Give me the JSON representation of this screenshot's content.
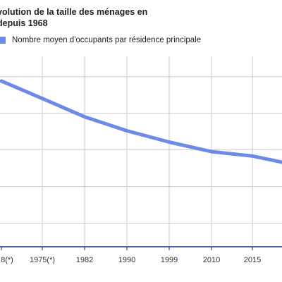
{
  "chart_data": {
    "type": "line",
    "title_lines": [
      "volution de la taille des ménages en",
      "depuis 1968"
    ],
    "categories": [
      "8(*)",
      "1975(*)",
      "1982",
      "1990",
      "1999",
      "2010",
      "2015",
      ""
    ],
    "series": [
      {
        "name": "Nombre moyen d'occupants par résidence principale",
        "color": "#6b8be6",
        "values": [
          3.05,
          2.85,
          2.64,
          2.48,
          2.35,
          2.24,
          2.19,
          2.12
        ]
      }
    ],
    "ylim": [
      1.15,
      3.3
    ],
    "yticks": [
      3.1,
      2.68,
      2.26,
      1.84,
      1.42
    ],
    "grid": true,
    "axis_color": "#1f2a8f",
    "grid_color": "#cccccc",
    "legend_position": "top-left"
  }
}
